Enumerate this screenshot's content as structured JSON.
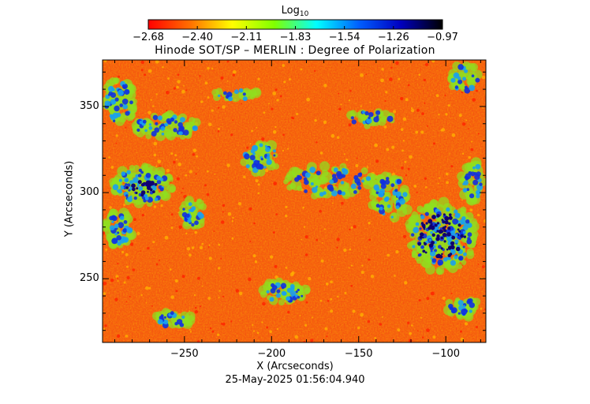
{
  "colorbar": {
    "title": "Log",
    "title_subscript": "10",
    "tick_labels": [
      "−2.68",
      "−2.40",
      "−2.11",
      "−1.83",
      "−1.54",
      "−1.26",
      "−0.97"
    ],
    "colors": [
      "#ff0000",
      "#ff7000",
      "#ffff00",
      "#80ff00",
      "#00ffff",
      "#0060ff",
      "#0000c0",
      "#000000"
    ]
  },
  "plot": {
    "title": "Hinode SOT/SP – MERLIN : Degree of Polarization",
    "x_axis_label": "X (Arcseconds)",
    "y_axis_label": "Y (Arcseconds)",
    "x_range": [
      -297,
      -77
    ],
    "y_range": [
      213,
      377
    ],
    "x_ticks": [
      {
        "value": -250,
        "label": "−250"
      },
      {
        "value": -200,
        "label": "−200"
      },
      {
        "value": -150,
        "label": "−150"
      },
      {
        "value": -100,
        "label": "−100"
      }
    ],
    "y_ticks": [
      {
        "value": 250,
        "label": "250"
      },
      {
        "value": 300,
        "label": "300"
      },
      {
        "value": 350,
        "label": "350"
      }
    ],
    "timestamp": "25-May-2025 01:56:04.940"
  }
}
